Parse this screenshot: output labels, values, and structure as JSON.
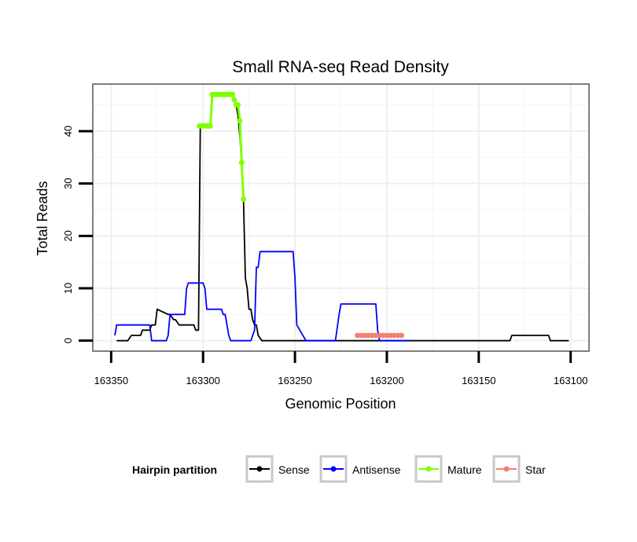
{
  "chart_data": {
    "type": "line",
    "title": "Small RNA-seq Read Density",
    "xlabel": "Genomic Position",
    "ylabel": "Total Reads",
    "xlim": [
      163360,
      163090
    ],
    "ylim": [
      -2,
      49
    ],
    "x_reversed": true,
    "x_ticks": [
      163350,
      163300,
      163250,
      163200,
      163150,
      163100
    ],
    "x_tick_labels": [
      "163350",
      "163300",
      "163250",
      "163200",
      "163150",
      "163100"
    ],
    "y_ticks": [
      0,
      10,
      20,
      30,
      40
    ],
    "y_tick_labels": [
      "0",
      "10",
      "20",
      "30",
      "40"
    ],
    "grid": true,
    "legend": {
      "title": "Hairpin partition",
      "position": "bottom",
      "entries": [
        "Sense",
        "Antisense",
        "Mature",
        "Star"
      ]
    },
    "series": [
      {
        "name": "Sense",
        "color": "#000000",
        "marker": false,
        "x": [
          163347,
          163341,
          163339,
          163334,
          163333,
          163329,
          163328,
          163326,
          163325,
          163319,
          163318,
          163316,
          163315,
          163313,
          163312,
          163305,
          163304,
          163303,
          163302.5,
          163301.5,
          163301,
          163299,
          163296,
          163295,
          163284,
          163283,
          163282,
          163281,
          163280,
          163279,
          163278,
          163277,
          163276,
          163275,
          163274,
          163273,
          163272,
          163271,
          163270,
          163268,
          163267,
          163265,
          163200,
          163190,
          163188,
          163133,
          163132,
          163112,
          163111,
          163101
        ],
        "y": [
          0,
          0,
          1,
          1,
          2,
          2,
          3,
          3,
          6,
          5,
          5,
          4,
          4,
          3,
          3,
          3,
          2,
          2,
          2,
          41,
          41,
          41,
          41,
          47,
          47,
          46,
          45,
          43,
          39,
          34,
          27,
          12,
          10,
          6,
          6,
          4,
          3,
          3,
          1,
          0,
          0,
          0,
          0,
          0,
          0,
          0,
          1,
          1,
          0,
          0
        ]
      },
      {
        "name": "Antisense",
        "color": "#0000ff",
        "marker": false,
        "x": [
          163348,
          163347,
          163331,
          163329,
          163328,
          163320,
          163319,
          163318,
          163310,
          163309,
          163308,
          163307,
          163300,
          163299,
          163298,
          163290,
          163289,
          163288,
          163286,
          163285,
          163274,
          163273,
          163272,
          163271,
          163270,
          163269,
          163252,
          163251,
          163250,
          163249,
          163244,
          163243,
          163229,
          163228,
          163226,
          163225,
          163207,
          163206,
          163205,
          163204,
          163190,
          163188
        ],
        "y": [
          1,
          3,
          3,
          3,
          0,
          0,
          1,
          5,
          5,
          10,
          11,
          11,
          11,
          10,
          6,
          6,
          5,
          5,
          1,
          0,
          0,
          1,
          2,
          14,
          14,
          17,
          17,
          17,
          12,
          3,
          0,
          0,
          0,
          0,
          5,
          7,
          7,
          7,
          2,
          0,
          0,
          0
        ]
      },
      {
        "name": "Mature",
        "color": "#80ff00",
        "marker": true,
        "x": [
          163302,
          163301,
          163300,
          163299,
          163298,
          163297,
          163296,
          163295,
          163294,
          163293,
          163292,
          163291,
          163290,
          163289,
          163288,
          163287,
          163286,
          163285,
          163284,
          163283,
          163282,
          163281,
          163280,
          163279,
          163278
        ],
        "y": [
          41,
          41,
          41,
          41,
          41,
          41,
          41,
          47,
          47,
          47,
          47,
          47,
          47,
          47,
          47,
          47,
          47,
          47,
          47,
          46,
          45,
          45,
          42,
          34,
          27
        ]
      },
      {
        "name": "Star",
        "color": "#f08070",
        "marker": true,
        "x": [
          163216,
          163214,
          163212,
          163210,
          163208,
          163206,
          163204,
          163202,
          163200,
          163198,
          163196,
          163194,
          163192
        ],
        "y": [
          1,
          1,
          1,
          1,
          1,
          1,
          1,
          1,
          1,
          1,
          1,
          1,
          1
        ]
      }
    ]
  }
}
